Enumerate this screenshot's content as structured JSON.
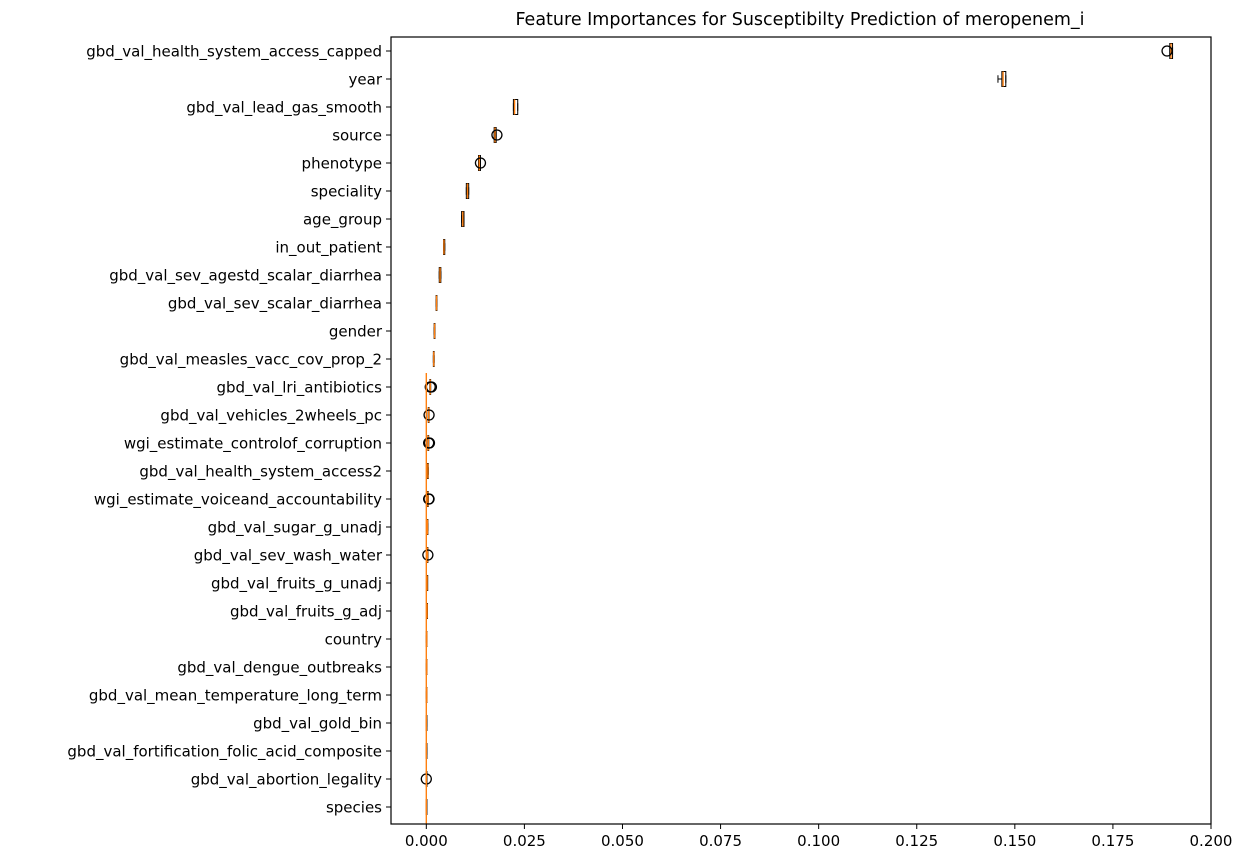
{
  "chart_data": {
    "type": "boxplot",
    "orientation": "horizontal",
    "title": "Feature Importances for Susceptibilty Prediction of meropenem_i",
    "xlabel": "",
    "ylabel": "",
    "xlim": [
      -0.009,
      0.2
    ],
    "xticks": [
      "0.000",
      "0.025",
      "0.050",
      "0.075",
      "0.100",
      "0.125",
      "0.150",
      "0.175",
      "0.200"
    ],
    "xtick_values": [
      0,
      0.025,
      0.05,
      0.075,
      0.1,
      0.125,
      0.15,
      0.175,
      0.2
    ],
    "grid": false,
    "colors": {
      "box": "#000000",
      "median": "#ff7f0e",
      "outlier": "#000000"
    },
    "features": [
      {
        "name": "gbd_val_health_system_access_capped",
        "min": 0.1895,
        "q1": 0.1895,
        "median": 0.1898,
        "q3": 0.1902,
        "max": 0.1902,
        "outliers": [
          0.1888
        ]
      },
      {
        "name": "year",
        "min": 0.1457,
        "q1": 0.1467,
        "median": 0.147,
        "q3": 0.1477,
        "max": 0.1477,
        "outliers": []
      },
      {
        "name": "gbd_val_lead_gas_smooth",
        "min": 0.0222,
        "q1": 0.0222,
        "median": 0.0225,
        "q3": 0.0233,
        "max": 0.0233,
        "outliers": []
      },
      {
        "name": "source",
        "min": 0.0173,
        "q1": 0.0173,
        "median": 0.0175,
        "q3": 0.0178,
        "max": 0.0178,
        "outliers": [
          0.018
        ]
      },
      {
        "name": "phenotype",
        "min": 0.0133,
        "q1": 0.0133,
        "median": 0.0135,
        "q3": 0.0138,
        "max": 0.0138,
        "outliers": [
          0.0138
        ]
      },
      {
        "name": "speciality",
        "min": 0.0102,
        "q1": 0.0102,
        "median": 0.0105,
        "q3": 0.0108,
        "max": 0.0108,
        "outliers": []
      },
      {
        "name": "age_group",
        "min": 0.009,
        "q1": 0.009,
        "median": 0.0093,
        "q3": 0.0096,
        "max": 0.0096,
        "outliers": []
      },
      {
        "name": "in_out_patient",
        "min": 0.0044,
        "q1": 0.0044,
        "median": 0.0045,
        "q3": 0.0047,
        "max": 0.0047,
        "outliers": []
      },
      {
        "name": "gbd_val_sev_agestd_scalar_diarrhea",
        "min": 0.0033,
        "q1": 0.0033,
        "median": 0.0035,
        "q3": 0.0037,
        "max": 0.0037,
        "outliers": []
      },
      {
        "name": "gbd_val_sev_scalar_diarrhea",
        "min": 0.0025,
        "q1": 0.0025,
        "median": 0.0026,
        "q3": 0.0027,
        "max": 0.0027,
        "outliers": []
      },
      {
        "name": "gender",
        "min": 0.002,
        "q1": 0.002,
        "median": 0.0021,
        "q3": 0.0022,
        "max": 0.0022,
        "outliers": []
      },
      {
        "name": "gbd_val_measles_vacc_cov_prop_2",
        "min": 0.0018,
        "q1": 0.0018,
        "median": 0.0019,
        "q3": 0.002,
        "max": 0.002,
        "outliers": []
      },
      {
        "name": "gbd_val_lri_antibiotics",
        "min": 0.0009,
        "q1": 0.0009,
        "median": 0.001,
        "q3": 0.0011,
        "max": 0.0011,
        "outliers": [
          0.0013,
          0.001
        ]
      },
      {
        "name": "gbd_val_vehicles_2wheels_pc",
        "min": 0.0005,
        "q1": 0.0005,
        "median": 0.0006,
        "q3": 0.0007,
        "max": 0.0007,
        "outliers": [
          0.0007
        ]
      },
      {
        "name": "wgi_estimate_controlof_corruption",
        "min": 0.0004,
        "q1": 0.0004,
        "median": 0.0005,
        "q3": 0.0006,
        "max": 0.0006,
        "outliers": [
          0.0007,
          0.0006,
          0.0008
        ]
      },
      {
        "name": "gbd_val_health_system_access2",
        "min": 0.0003,
        "q1": 0.0003,
        "median": 0.0004,
        "q3": 0.0005,
        "max": 0.0005,
        "outliers": []
      },
      {
        "name": "wgi_estimate_voiceand_accountability",
        "min": 0.0003,
        "q1": 0.0003,
        "median": 0.0004,
        "q3": 0.0005,
        "max": 0.0005,
        "outliers": [
          0.0007,
          0.0006
        ]
      },
      {
        "name": "gbd_val_sugar_g_unadj",
        "min": 0.0002,
        "q1": 0.0002,
        "median": 0.0003,
        "q3": 0.0004,
        "max": 0.0004,
        "outliers": []
      },
      {
        "name": "gbd_val_sev_wash_water",
        "min": 0.0002,
        "q1": 0.0002,
        "median": 0.0003,
        "q3": 0.0004,
        "max": 0.0004,
        "outliers": [
          0.0004
        ]
      },
      {
        "name": "gbd_val_fruits_g_unadj",
        "min": 0.0002,
        "q1": 0.0002,
        "median": 0.0002,
        "q3": 0.0003,
        "max": 0.0003,
        "outliers": []
      },
      {
        "name": "gbd_val_fruits_g_adj",
        "min": 0.0001,
        "q1": 0.0001,
        "median": 0.0002,
        "q3": 0.0003,
        "max": 0.0003,
        "outliers": []
      },
      {
        "name": "country",
        "min": 0.0,
        "q1": 0.0,
        "median": 0.0001,
        "q3": 0.0001,
        "max": 0.0001,
        "outliers": []
      },
      {
        "name": "gbd_val_dengue_outbreaks",
        "min": 0.0,
        "q1": 0.0,
        "median": 0.0001,
        "q3": 0.0001,
        "max": 0.0001,
        "outliers": []
      },
      {
        "name": "gbd_val_mean_temperature_long_term",
        "min": 0.0,
        "q1": 0.0,
        "median": 0.0001,
        "q3": 0.0001,
        "max": 0.0001,
        "outliers": []
      },
      {
        "name": "gbd_val_gold_bin",
        "min": 0.0,
        "q1": 0.0,
        "median": 0.0,
        "q3": 0.0001,
        "max": 0.0001,
        "outliers": []
      },
      {
        "name": "gbd_val_fortification_folic_acid_composite",
        "min": 0.0,
        "q1": 0.0,
        "median": 0.0,
        "q3": 0.0001,
        "max": 0.0001,
        "outliers": []
      },
      {
        "name": "gbd_val_abortion_legality",
        "min": 0.0,
        "q1": 0.0,
        "median": 0.0,
        "q3": 0.0,
        "max": 0.0,
        "outliers": [
          0.0
        ]
      },
      {
        "name": "species",
        "min": 0.0,
        "q1": 0.0,
        "median": 0.0,
        "q3": 0.0,
        "max": 0.0,
        "outliers": []
      }
    ]
  }
}
